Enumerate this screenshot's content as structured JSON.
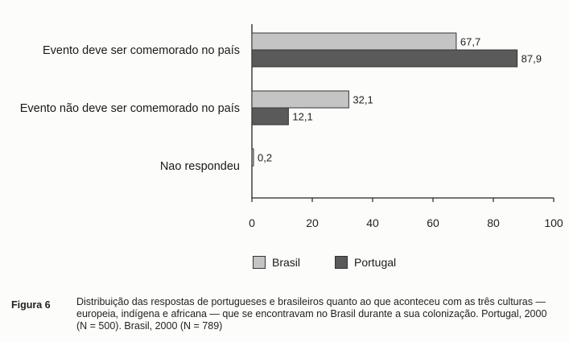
{
  "chart_data": {
    "type": "bar",
    "orientation": "horizontal",
    "categories": [
      "Evento deve ser comemorado no país",
      "Evento não deve ser comemorado no país",
      "Nao respondeu"
    ],
    "series": [
      {
        "name": "Brasil",
        "values": [
          67.7,
          32.1,
          0.2
        ],
        "labels": [
          "67,7",
          "32,1",
          "0,2"
        ],
        "color": "#c4c4c4"
      },
      {
        "name": "Portugal",
        "values": [
          87.9,
          12.1,
          null
        ],
        "labels": [
          "87,9",
          "12,1",
          ""
        ],
        "color": "#5a5a5a"
      }
    ],
    "xlim": [
      0,
      100
    ],
    "xticks": [
      "0",
      "20",
      "40",
      "60",
      "80",
      "100"
    ],
    "legend": "bottom",
    "grid": false
  },
  "caption": {
    "label": "Figura 6",
    "text": "Distribuição das respostas de portugueses e brasileiros quanto ao que aconteceu com as três culturas — europeia, indígena e africana — que se encontravam no Brasil durante a sua colonização. Portugal, 2000 (N = 500). Brasil, 2000 (N = 789)"
  }
}
